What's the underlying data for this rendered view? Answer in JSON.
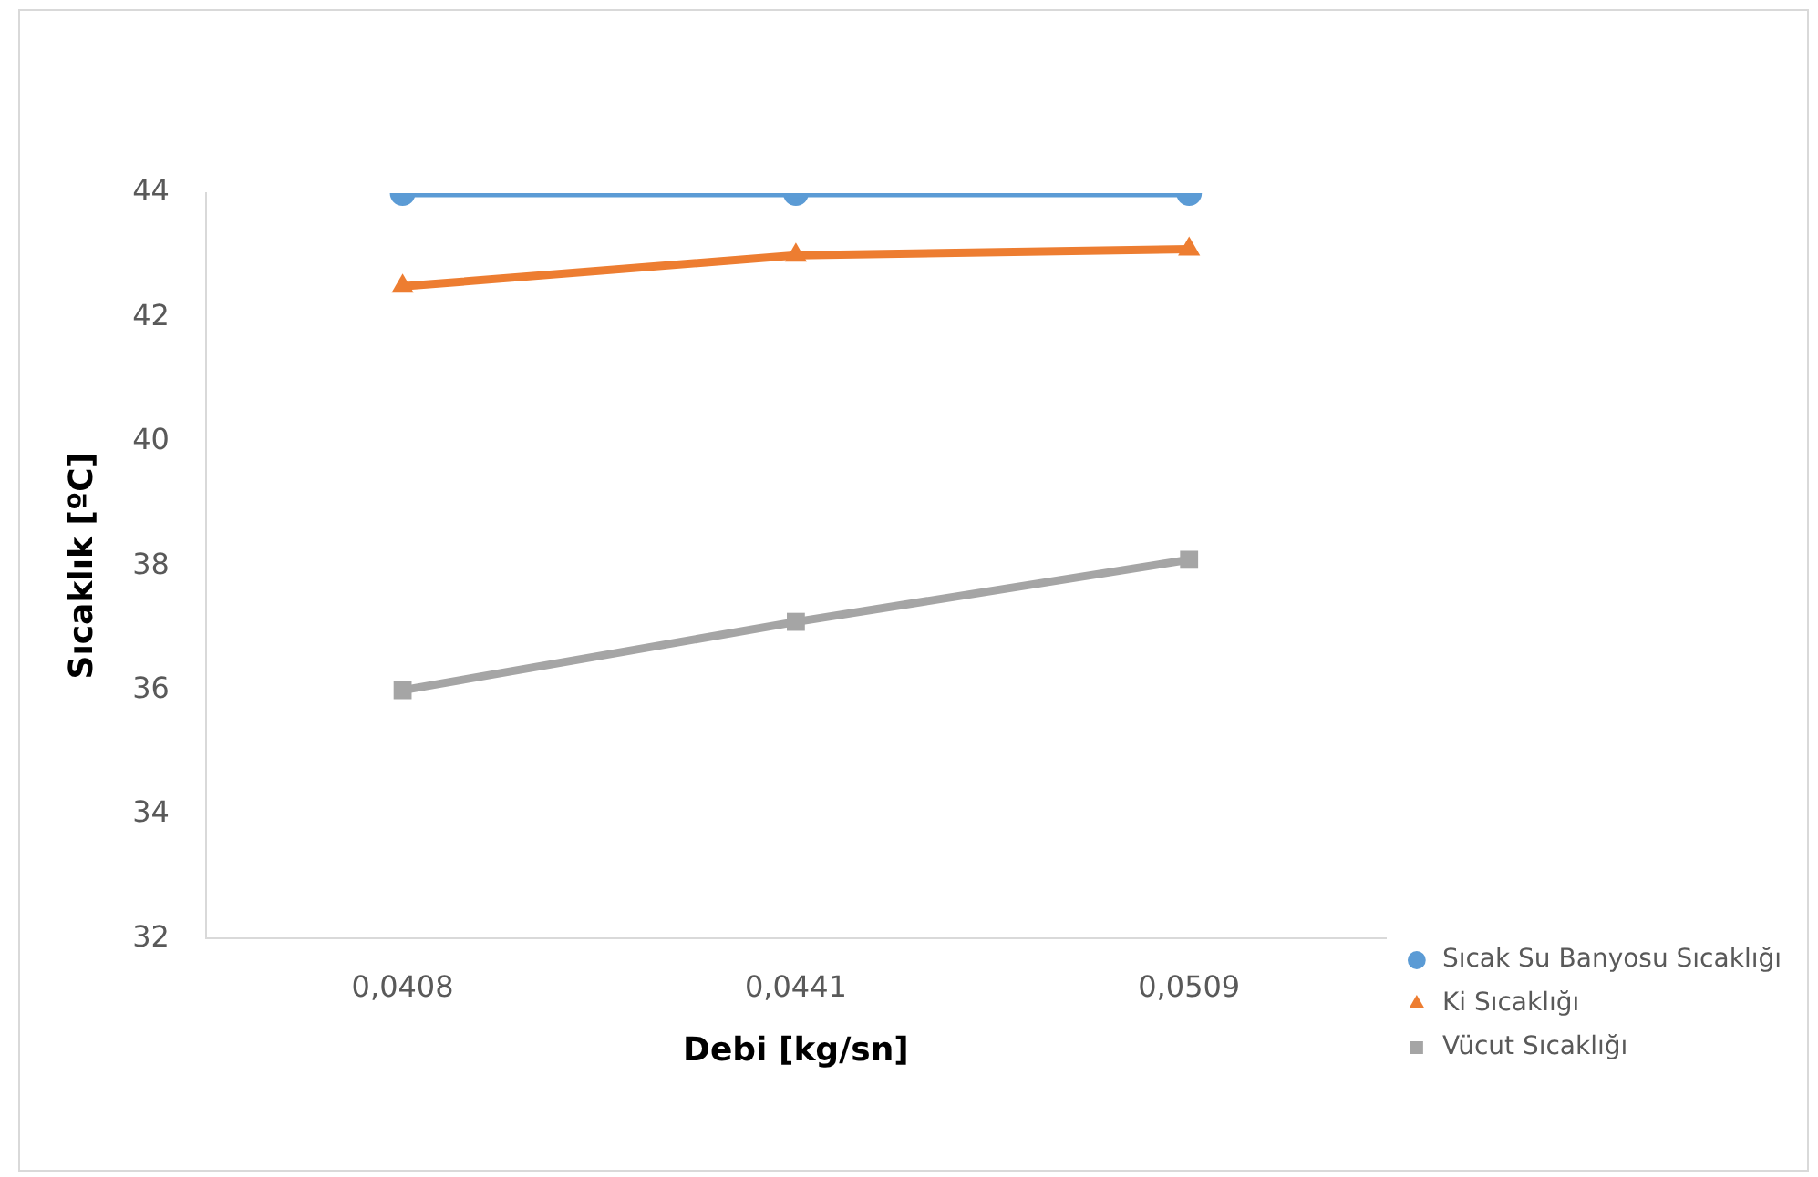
{
  "chart_data": {
    "type": "line",
    "xlabel": "Debi [kg/sn]",
    "ylabel": "Sıcaklık [ºC]",
    "categories": [
      "0,0408",
      "0,0441",
      "0,0509"
    ],
    "series": [
      {
        "name": "Sıcak Su Banyosu Sıcaklığı",
        "color": "#5b9bd5",
        "marker": "circle",
        "values": [
          44,
          44,
          44
        ]
      },
      {
        "name": "Ki Sıcaklığı",
        "color": "#ed7d31",
        "marker": "triangle",
        "values": [
          42.5,
          43.0,
          43.1
        ]
      },
      {
        "name": "Vücut Sıcaklığı",
        "color": "#a5a5a5",
        "marker": "square",
        "values": [
          36.0,
          37.1,
          38.1
        ]
      }
    ],
    "ylim": [
      32,
      44
    ],
    "yticks": [
      32,
      34,
      36,
      38,
      40,
      42,
      44
    ],
    "grid": false,
    "legend": "right"
  }
}
